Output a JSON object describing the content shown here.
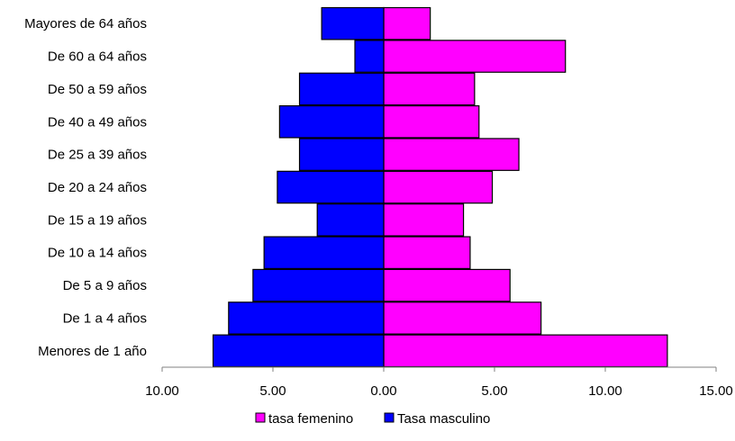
{
  "chart_data": {
    "type": "bar",
    "orientation": "horizontal",
    "title": "",
    "xlabel": "",
    "ylabel": "",
    "categories": [
      "Menores de 1 año",
      "De 1 a 4 años",
      "De 5 a 9 años",
      "De 10 a 14 años",
      "De 15 a 19 años",
      "De 20 a 24 años",
      "De 25 a 39 años",
      "De 40 a 49 años",
      "De 50 a 59 años",
      "De 60 a 64 años",
      "Mayores de 64 años"
    ],
    "series": [
      {
        "name": "tasa femenino",
        "color": "#FF00FF",
        "direction": "right",
        "values": [
          12.8,
          7.1,
          5.7,
          3.9,
          3.6,
          4.9,
          6.1,
          4.3,
          4.1,
          8.2,
          2.1
        ]
      },
      {
        "name": "Tasa masculino",
        "color": "#0000FF",
        "direction": "left",
        "values": [
          7.7,
          7.0,
          5.9,
          5.4,
          3.0,
          4.8,
          3.8,
          4.7,
          3.8,
          1.3,
          2.8
        ]
      }
    ],
    "xlim": [
      -10,
      15
    ],
    "x_ticks": [
      {
        "value": -10,
        "label": "10.00"
      },
      {
        "value": -5,
        "label": "5.00"
      },
      {
        "value": 0,
        "label": "0.00"
      },
      {
        "value": 5,
        "label": "5.00"
      },
      {
        "value": 10,
        "label": "10.00"
      },
      {
        "value": 15,
        "label": "15.00"
      }
    ],
    "grid": false,
    "legend_position": "bottom"
  }
}
